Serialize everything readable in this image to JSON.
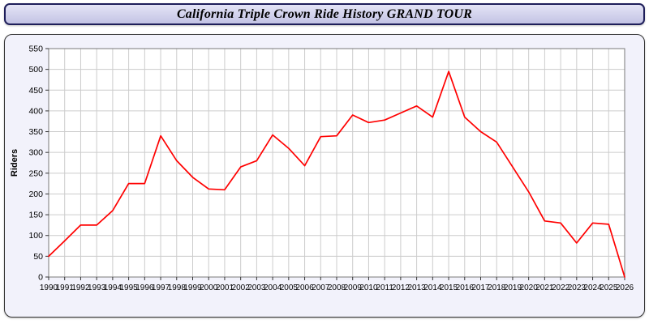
{
  "title_bar": {
    "title": "California Triple Crown Ride History GRAND TOUR"
  },
  "colors": {
    "line": "#ff0000",
    "grid": "#cccccc",
    "plot_bg": "#ffffff",
    "plot_frame": "#7a7a7a",
    "panel_bg": "#f2f2fb",
    "title_bg": "#ccccee",
    "axis_text": "#000000"
  },
  "chart_data": {
    "type": "line",
    "title": "California Triple Crown Ride History GRAND TOUR",
    "xlabel": "",
    "ylabel": "Riders",
    "categories": [
      "1990",
      "1991",
      "1992",
      "1993",
      "1994",
      "1995",
      "1996",
      "1997",
      "1998",
      "1999",
      "2000",
      "2001",
      "2002",
      "2003",
      "2004",
      "2005",
      "2006",
      "2007",
      "2008",
      "2009",
      "2010",
      "2011",
      "2012",
      "2013",
      "2014",
      "2015",
      "2016",
      "2017",
      "2018",
      "2019",
      "2020",
      "2021",
      "2022",
      "2023",
      "2024",
      "2025",
      "2026"
    ],
    "values": [
      50,
      87,
      125,
      125,
      160,
      225,
      225,
      340,
      280,
      240,
      212,
      210,
      265,
      280,
      342,
      310,
      268,
      338,
      340,
      390,
      372,
      378,
      395,
      412,
      385,
      495,
      385,
      350,
      325,
      265,
      205,
      135,
      130,
      82,
      130,
      127,
      0
    ],
    "ylim": [
      0,
      550
    ],
    "ytick_step": 50,
    "grid": true,
    "legend_position": "none"
  }
}
